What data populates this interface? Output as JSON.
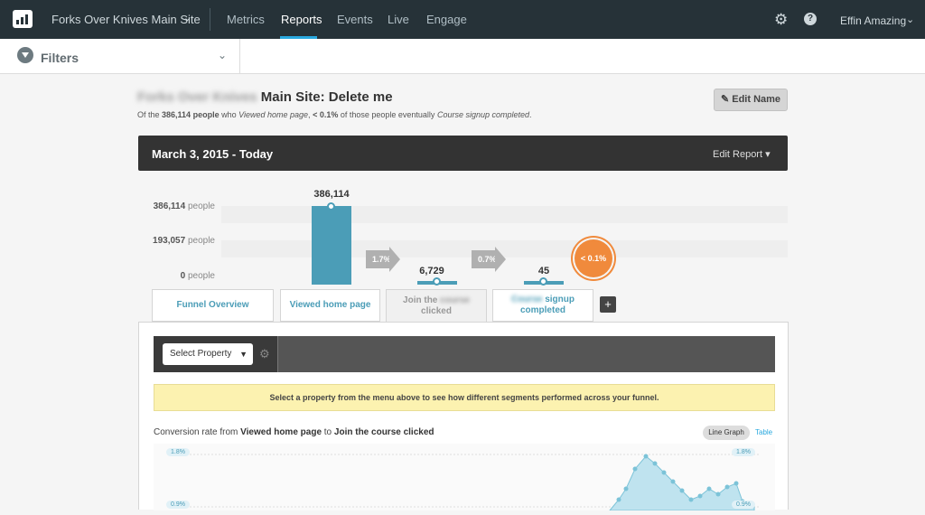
{
  "nav": {
    "site_name": "Forks Over Knives Main Site",
    "tabs": [
      "Metrics",
      "Reports",
      "Events",
      "Live",
      "Engage"
    ],
    "active_tab": "Reports",
    "user": "Effin Amazing"
  },
  "filters": {
    "label": "Filters"
  },
  "report": {
    "title_blurred": "Forks Over Knives",
    "title_main": "Main Site: Delete me",
    "subtitle_prefix": "Of the",
    "subtitle_count": "386,114 people",
    "subtitle_mid1": "who",
    "subtitle_event1": "Viewed home page",
    "subtitle_mid2": ",",
    "subtitle_pct": "< 0.1%",
    "subtitle_mid3": "of those people eventually",
    "subtitle_event2": "Course signup completed",
    "subtitle_end": ".",
    "edit_name": "Edit Name",
    "date_range": "March 3, 2015 - Today",
    "edit_report": "Edit Report"
  },
  "funnel": {
    "y_labels": [
      {
        "value": "386,114",
        "unit": "people"
      },
      {
        "value": "193,057",
        "unit": "people"
      },
      {
        "value": "0",
        "unit": "people"
      }
    ],
    "steps": [
      {
        "label": "Viewed home page",
        "count": "386,114",
        "value": 386114
      },
      {
        "label": "Join the course clicked",
        "count": "6,729",
        "value": 6729
      },
      {
        "label": "Course signup completed",
        "count": "45",
        "value": 45
      }
    ],
    "conversions": [
      "1.7%",
      "0.7%"
    ],
    "overall_badge": "< 0.1%",
    "tabs": {
      "overview": "Funnel Overview",
      "step1": "Viewed home page",
      "step2_a": "Join the",
      "step2_blur": "course",
      "step2_b": "clicked",
      "step3_blur": "Course",
      "step3_a": "signup",
      "step3_b": "completed",
      "add": "+"
    }
  },
  "segments": {
    "select_property": "Select Property",
    "notice": "Select a property from the menu above to see how different segments performed across your funnel.",
    "conv_prefix": "Conversion rate from",
    "conv_from": "Viewed home page",
    "conv_to_word": "to",
    "conv_to": "Join the course clicked",
    "line_graph": "Line Graph",
    "table": "Table",
    "y_top": "1.8%",
    "y_mid": "0.9%"
  },
  "colors": {
    "accent": "#29a9df",
    "bar": "#4b9db7",
    "badge": "#f08a3c",
    "nav_bg": "#263238"
  }
}
